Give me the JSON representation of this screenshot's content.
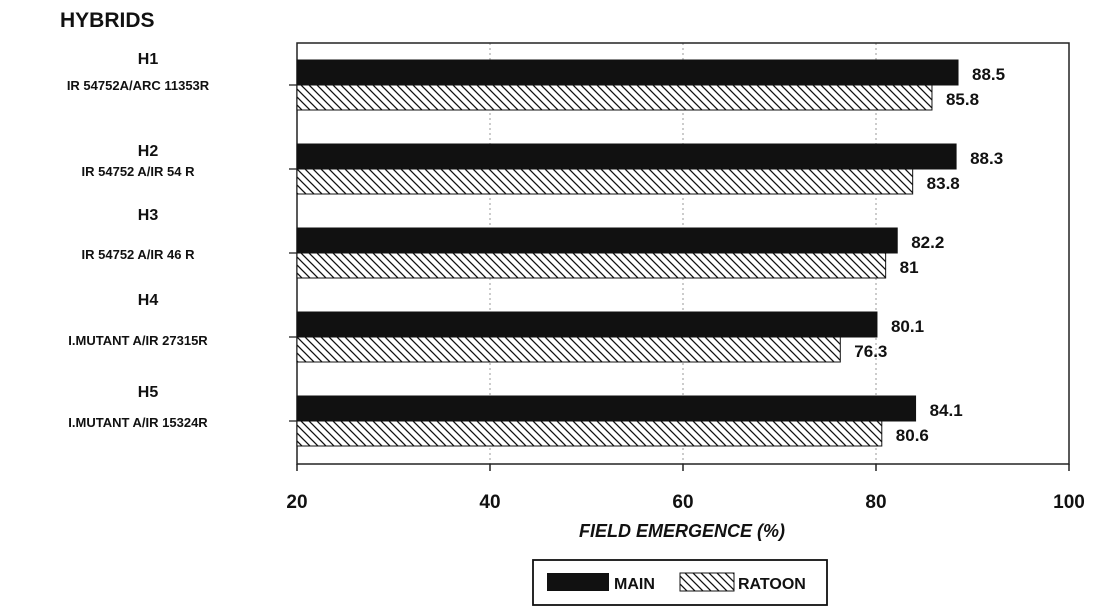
{
  "chart_data": {
    "type": "bar",
    "orientation": "horizontal",
    "title": "HYBRIDS",
    "xlabel": "FIELD EMERGENCE (%)",
    "ylabel": "",
    "xlim": [
      20,
      100
    ],
    "xticks": [
      20,
      40,
      60,
      80,
      100
    ],
    "grid": true,
    "legend_position": "bottom-center",
    "categories": [
      {
        "code": "H1",
        "name": "IR 54752A/ARC 11353R"
      },
      {
        "code": "H2",
        "name": "IR 54752 A/IR 54 R"
      },
      {
        "code": "H3",
        "name": "IR 54752 A/IR 46 R"
      },
      {
        "code": "H4",
        "name": "I.MUTANT A/IR 27315R"
      },
      {
        "code": "H5",
        "name": "I.MUTANT A/IR 15324R"
      }
    ],
    "series": [
      {
        "name": "MAIN",
        "pattern": "solid",
        "color": "#111111",
        "values": [
          88.5,
          88.3,
          82.2,
          80.1,
          84.1
        ],
        "labels": [
          "88.5",
          "88.3",
          "82.2",
          "80.1",
          "84.1"
        ]
      },
      {
        "name": "RATOON",
        "pattern": "hatched",
        "color": "#111111",
        "values": [
          85.8,
          83.8,
          81,
          76.3,
          80.6
        ],
        "labels": [
          "85.8",
          "83.8",
          "81",
          "76.3",
          "80.6"
        ]
      }
    ]
  }
}
